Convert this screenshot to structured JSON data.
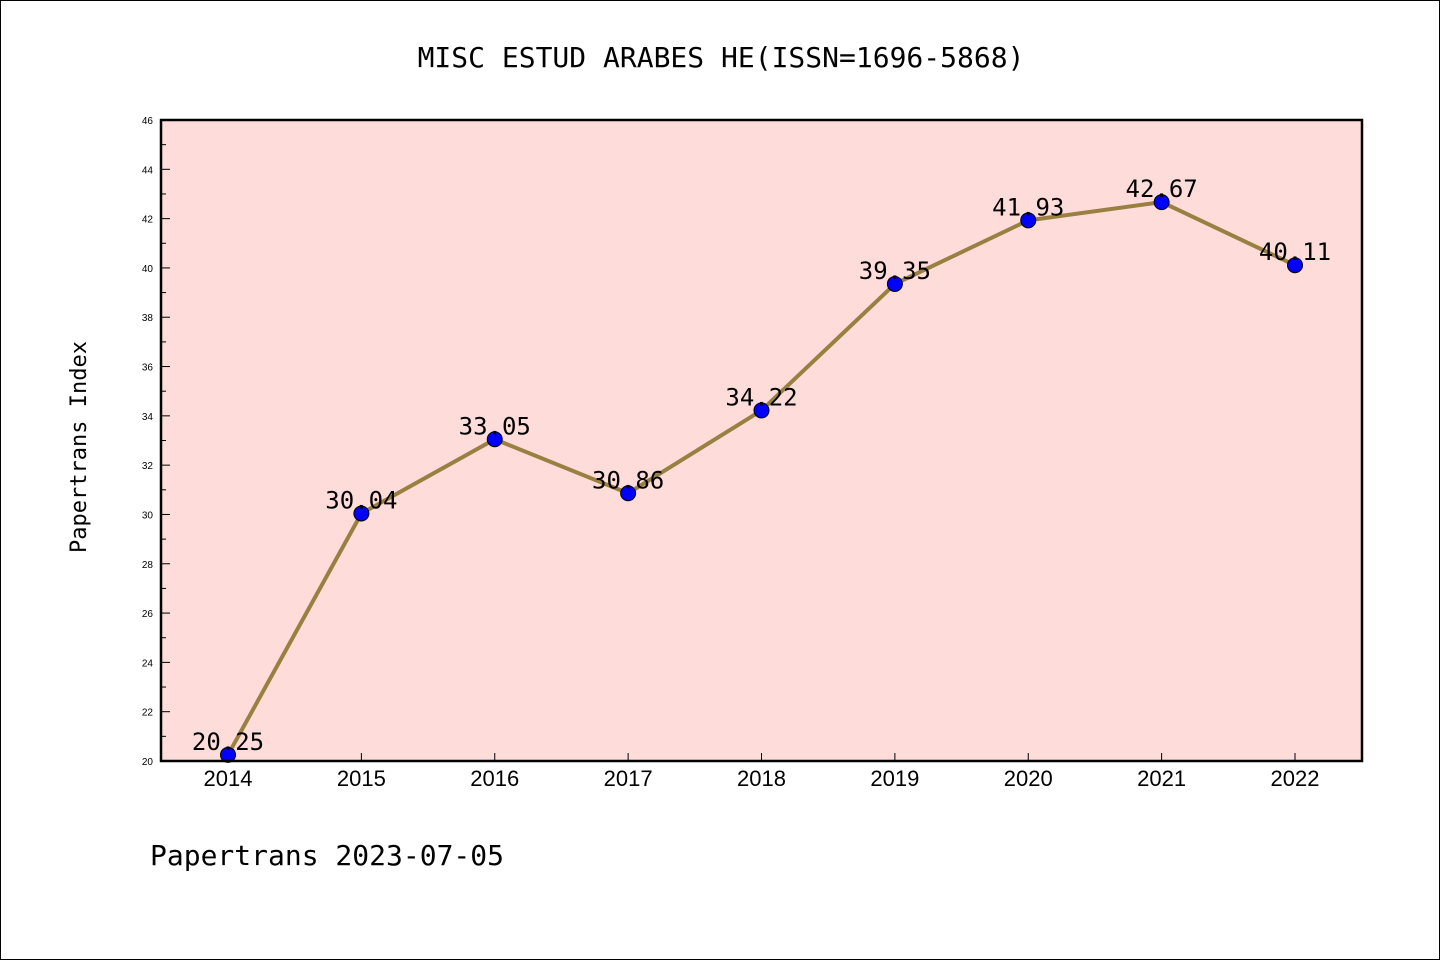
{
  "chart_data": {
    "type": "line",
    "title": "MISC ESTUD ARABES HE(ISSN=1696-5868)",
    "ylabel": "Papertrans Index",
    "xlabel": "",
    "categories": [
      "2014",
      "2015",
      "2016",
      "2017",
      "2018",
      "2019",
      "2020",
      "2021",
      "2022"
    ],
    "series": [
      {
        "values": [
          20.25,
          30.04,
          33.05,
          30.86,
          34.22,
          39.35,
          41.93,
          42.67,
          40.11
        ]
      }
    ],
    "data_labels": [
      "20.25",
      "30.04",
      "33.05",
      "30.86",
      "34.22",
      "39.35",
      "41.93",
      "42.67",
      "40.11"
    ],
    "ylim": [
      20,
      46
    ],
    "yticks": [
      "20",
      "22",
      "24",
      "26",
      "28",
      "30",
      "32",
      "34",
      "36",
      "38",
      "40",
      "42",
      "44",
      "46"
    ],
    "grid": false,
    "line_color": "#9a8040",
    "marker_color": "#0000ff",
    "plot_background": "#fddcda",
    "footer": "Papertrans 2023-07-05"
  }
}
